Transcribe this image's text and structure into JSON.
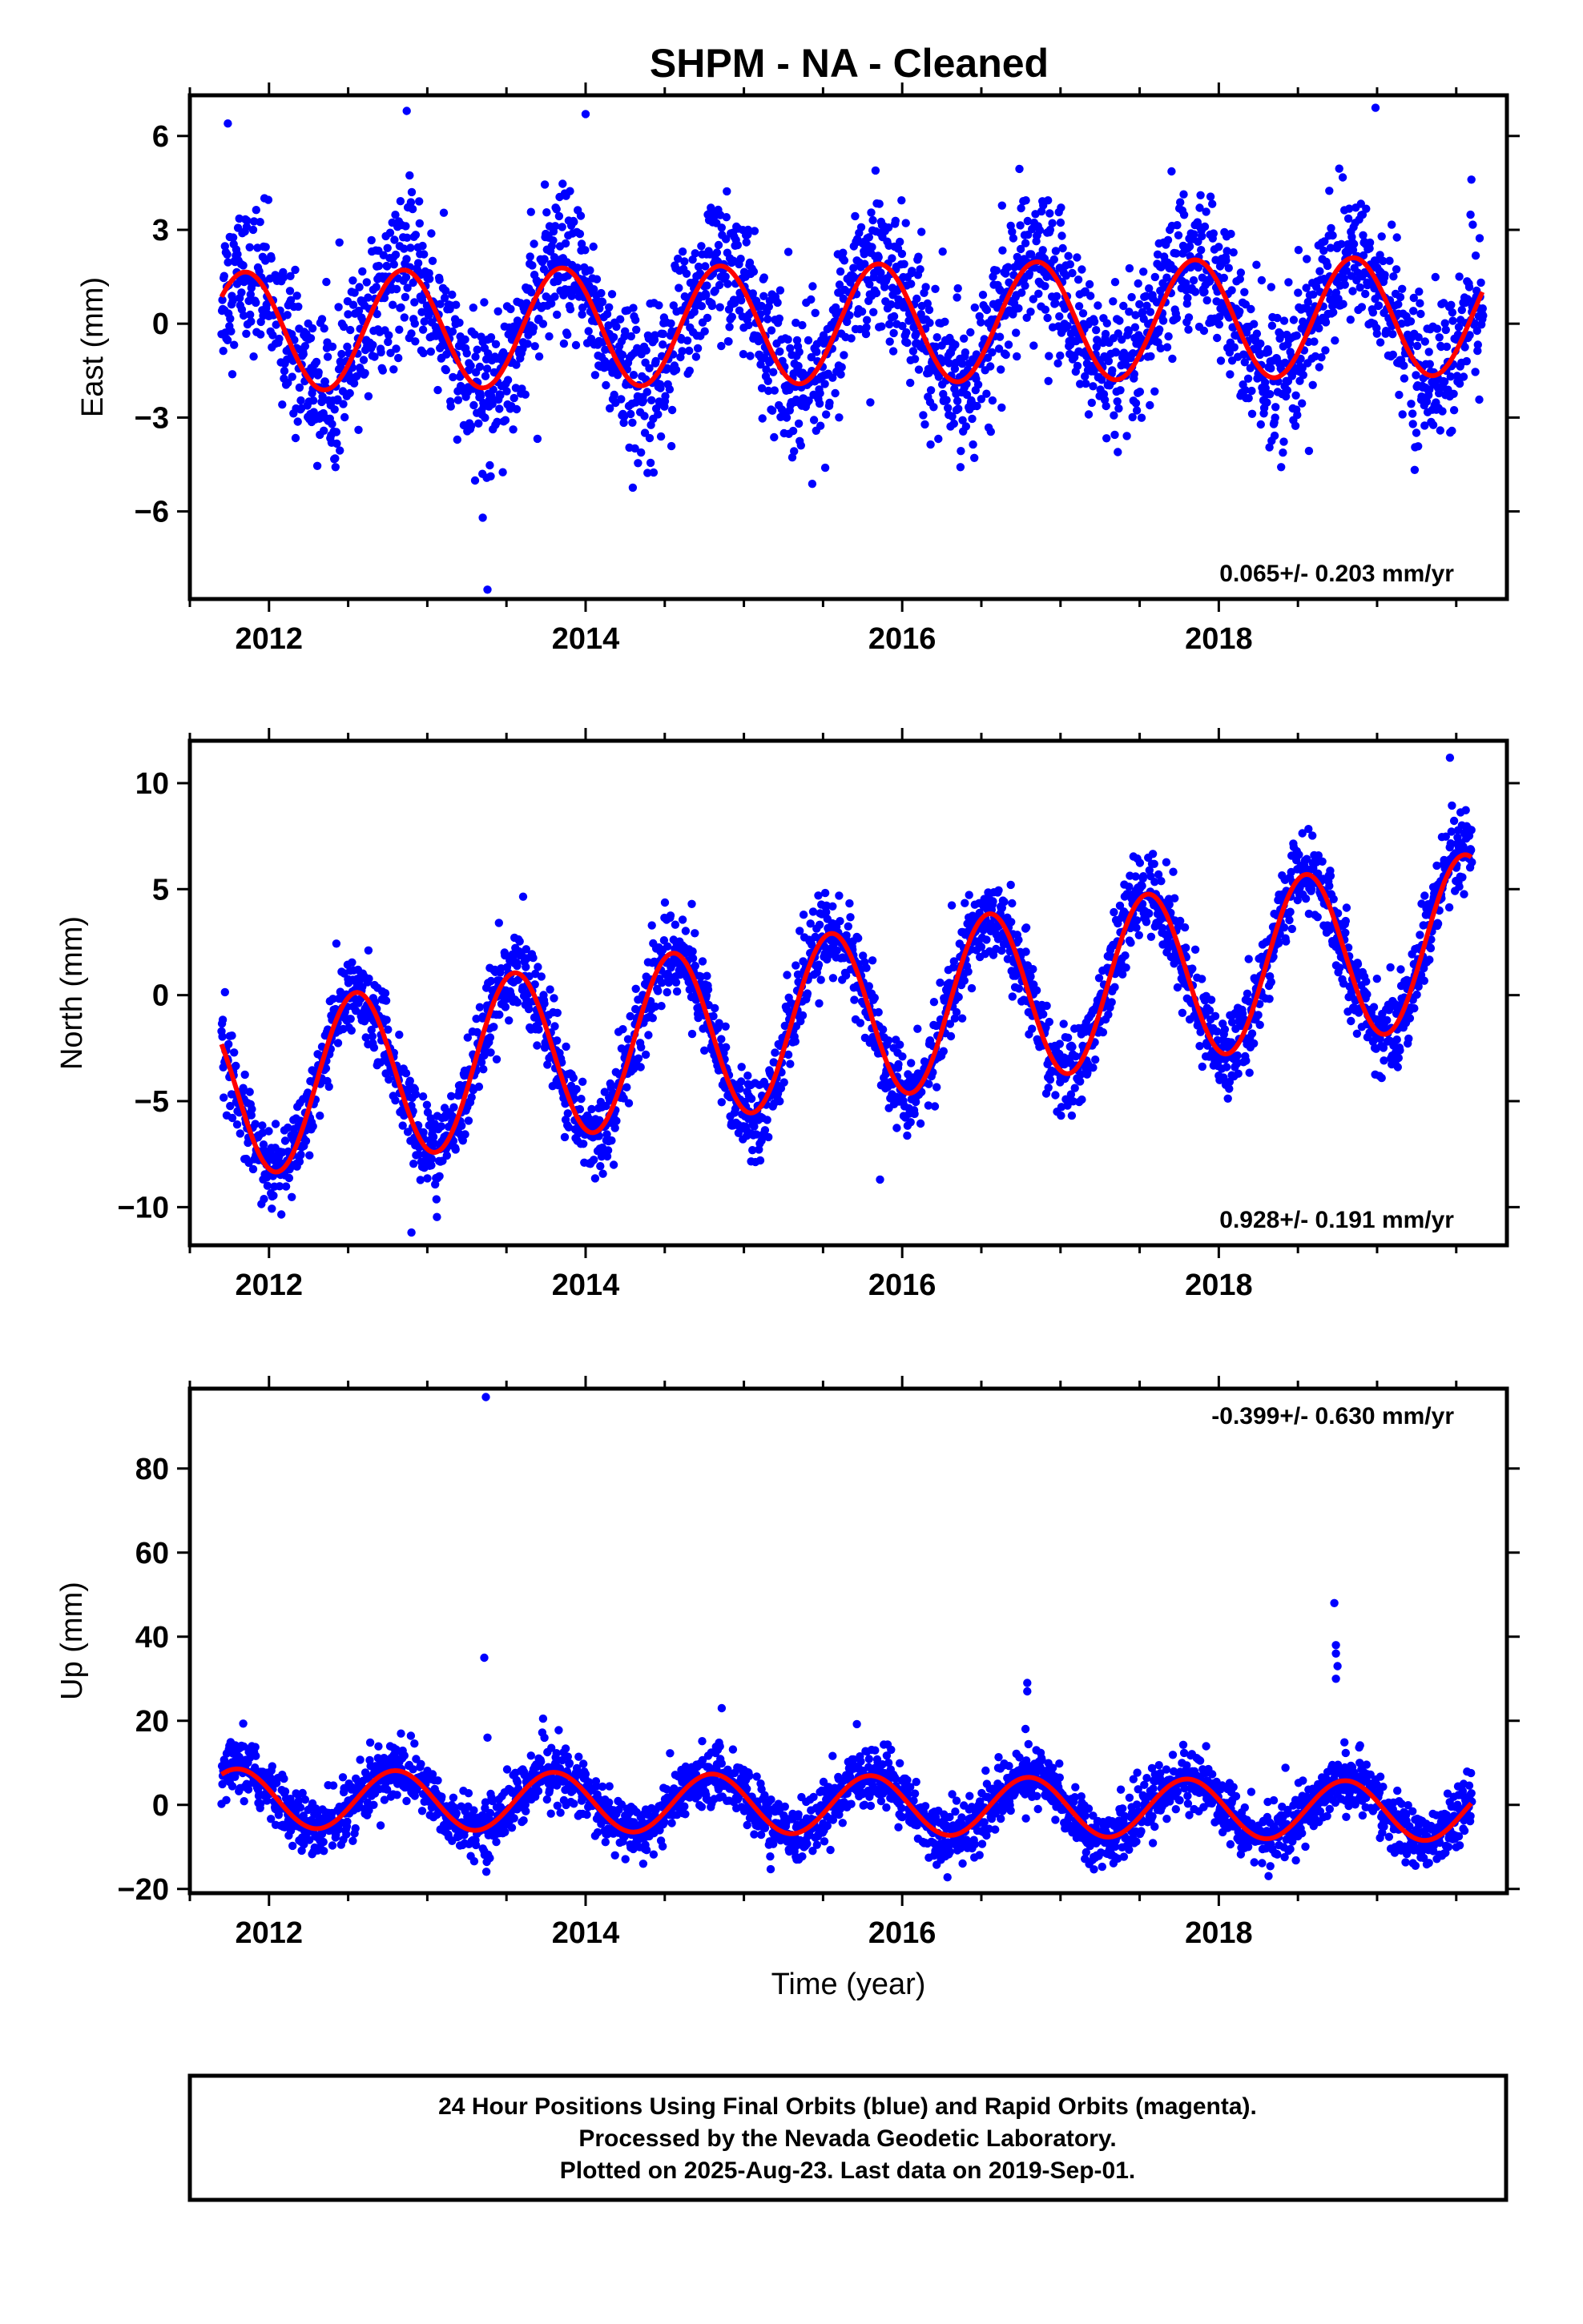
{
  "title": "SHPM  - NA - Cleaned",
  "xlabel": "Time (year)",
  "caption": [
    "24 Hour Positions Using Final Orbits (blue) and Rapid Orbits (magenta).",
    "Processed by the Nevada Geodetic Laboratory.",
    "Plotted on 2025-Aug-23. Last data on 2019-Sep-01."
  ],
  "colors": {
    "data": "#0000ff",
    "fit": "#ff0000",
    "axis": "#000000"
  },
  "chart_data": [
    {
      "type": "scatter",
      "ylabel": "East (mm)",
      "rate_label": "0.065+/- 0.203 mm/yr",
      "rate_position": "bottom-right",
      "xlim": [
        2011.5,
        2019.82
      ],
      "ylim": [
        -8.8,
        7.3
      ],
      "xticks": [
        2012,
        2014,
        2016,
        2018
      ],
      "yticks": [
        -6,
        -3,
        0,
        3,
        6
      ],
      "ytick_labels": [
        "−6",
        "−3",
        "0",
        "3",
        "6"
      ],
      "data_range": [
        2011.7,
        2019.67
      ],
      "fit": {
        "offset": 0.0,
        "trend": 0.065,
        "annual_amp": 1.9,
        "annual_phase_peak": 0.85
      },
      "series": [
        {
          "name": "Final Orbits (blue)",
          "kind": "points",
          "scatter_sd": 1.15
        },
        {
          "name": "model",
          "kind": "line"
        }
      ],
      "outliers": [
        [
          2013.38,
          -8.5
        ],
        [
          2013.35,
          -6.2
        ],
        [
          2018.99,
          6.9
        ],
        [
          2012.87,
          6.8
        ],
        [
          2014.0,
          6.7
        ],
        [
          2011.74,
          6.4
        ]
      ]
    },
    {
      "type": "scatter",
      "ylabel": "North (mm)",
      "rate_label": "0.928+/- 0.191 mm/yr",
      "rate_position": "bottom-right",
      "xlim": [
        2011.5,
        2019.82
      ],
      "ylim": [
        -11.8,
        12.0
      ],
      "xticks": [
        2012,
        2014,
        2016,
        2018
      ],
      "yticks": [
        -10,
        -5,
        0,
        5,
        10
      ],
      "ytick_labels": [
        "−10",
        "−5",
        "0",
        "5",
        "10"
      ],
      "data_range": [
        2011.7,
        2019.6
      ],
      "fit": {
        "offset": -1.0,
        "trend": 0.928,
        "annual_amp": 4.0,
        "annual_phase_peak": 0.55
      },
      "series": [
        {
          "name": "Final Orbits (blue)",
          "kind": "points",
          "scatter_sd": 1.0
        },
        {
          "name": "model",
          "kind": "line"
        }
      ],
      "outliers": [
        [
          2012.9,
          -11.2
        ],
        [
          2015.86,
          -8.7
        ],
        [
          2019.46,
          11.2
        ]
      ]
    },
    {
      "type": "scatter",
      "ylabel": "Up (mm)",
      "rate_label": "-0.399+/- 0.630 mm/yr",
      "rate_position": "top-right",
      "xlim": [
        2011.5,
        2019.82
      ],
      "ylim": [
        -21,
        99
      ],
      "xticks": [
        2012,
        2014,
        2016,
        2018
      ],
      "yticks": [
        -20,
        0,
        20,
        40,
        60,
        80
      ],
      "ytick_labels": [
        "−20",
        "0",
        "20",
        "40",
        "60",
        "80"
      ],
      "data_range": [
        2011.7,
        2019.6
      ],
      "fit": {
        "offset": 0.0,
        "trend": -0.399,
        "annual_amp": 7.0,
        "annual_phase_peak": 0.8
      },
      "series": [
        {
          "name": "Final Orbits (blue)",
          "kind": "points",
          "scatter_sd": 3.5
        },
        {
          "name": "model",
          "kind": "line"
        }
      ],
      "outliers": [
        [
          2013.37,
          97
        ],
        [
          2013.36,
          35
        ],
        [
          2013.38,
          16
        ],
        [
          2016.79,
          29
        ],
        [
          2016.79,
          27
        ],
        [
          2014.86,
          23
        ],
        [
          2018.73,
          48
        ],
        [
          2018.74,
          38
        ],
        [
          2018.74,
          36
        ],
        [
          2018.75,
          33
        ],
        [
          2018.74,
          30
        ]
      ]
    }
  ]
}
